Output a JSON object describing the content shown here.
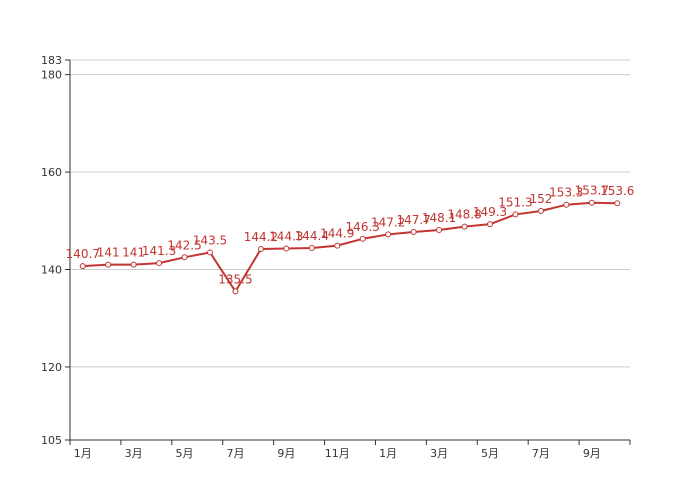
{
  "chart_data": {
    "type": "line",
    "title": "",
    "xlabel": "",
    "ylabel": "",
    "ylim": [
      105,
      183
    ],
    "y_ticks": [
      105,
      120,
      140,
      160,
      180,
      183
    ],
    "grid": true,
    "x_tick_labels": [
      "1月",
      "3月",
      "5月",
      "7月",
      "9月",
      "11月",
      "1月",
      "3月",
      "5月",
      "7月",
      "9月"
    ],
    "series": [
      {
        "color": "#c23531",
        "values": [
          140.7,
          141,
          141,
          141.3,
          142.5,
          143.5,
          135.5,
          144.2,
          144.3,
          144.4,
          144.9,
          146.3,
          147.2,
          147.7,
          148.1,
          148.8,
          149.3,
          151.3,
          152,
          153.3,
          153.7,
          153.6
        ],
        "labels": [
          "140.7",
          "141",
          "141",
          "141.3",
          "142.5",
          "143.5",
          "135.5",
          "144.2",
          "144.3",
          "144.4",
          "144.9",
          "146.3",
          "147.2",
          "147.7",
          "148.1",
          "148.8",
          "149.3",
          "151.3",
          "152",
          "153.3",
          "153.7",
          "153.6"
        ]
      }
    ]
  }
}
